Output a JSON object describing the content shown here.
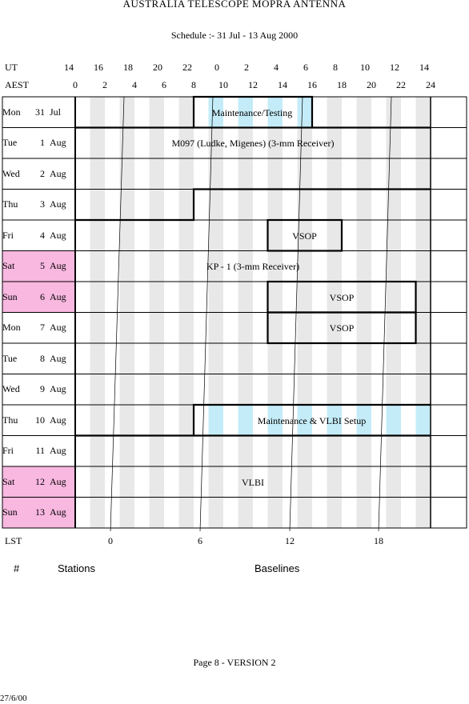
{
  "title": "AUSTRALIA TELESCOPE MOPRA ANTENNA",
  "subtitle": "Schedule :- 31 Jul - 13 Aug 2000",
  "ut_label": "UT",
  "aest_label": "AEST",
  "lst_label": "LST",
  "ut_ticks": [
    "14",
    "16",
    "18",
    "20",
    "22",
    "0",
    "2",
    "4",
    "6",
    "8",
    "10",
    "12",
    "14"
  ],
  "aest_ticks": [
    "0",
    "2",
    "4",
    "6",
    "8",
    "10",
    "12",
    "14",
    "16",
    "18",
    "20",
    "22",
    "24"
  ],
  "lst_ticks": [
    "0",
    "6",
    "12",
    "18"
  ],
  "days": [
    {
      "dow": "Mon",
      "num": "31",
      "mon": "Jul",
      "weekend": false
    },
    {
      "dow": "Tue",
      "num": "1",
      "mon": "Aug",
      "weekend": false
    },
    {
      "dow": "Wed",
      "num": "2",
      "mon": "Aug",
      "weekend": false
    },
    {
      "dow": "Thu",
      "num": "3",
      "mon": "Aug",
      "weekend": false
    },
    {
      "dow": "Fri",
      "num": "4",
      "mon": "Aug",
      "weekend": false
    },
    {
      "dow": "Sat",
      "num": "5",
      "mon": "Aug",
      "weekend": true
    },
    {
      "dow": "Sun",
      "num": "6",
      "mon": "Aug",
      "weekend": true
    },
    {
      "dow": "Mon",
      "num": "7",
      "mon": "Aug",
      "weekend": false
    },
    {
      "dow": "Tue",
      "num": "8",
      "mon": "Aug",
      "weekend": false
    },
    {
      "dow": "Wed",
      "num": "9",
      "mon": "Aug",
      "weekend": false
    },
    {
      "dow": "Thu",
      "num": "10",
      "mon": "Aug",
      "weekend": false
    },
    {
      "dow": "Fri",
      "num": "11",
      "mon": "Aug",
      "weekend": false
    },
    {
      "dow": "Sat",
      "num": "12",
      "mon": "Aug",
      "weekend": true
    },
    {
      "dow": "Sun",
      "num": "13",
      "mon": "Aug",
      "weekend": true
    }
  ],
  "blocks": {
    "maint1": "Maintenance/Testing",
    "m097": "M097 (Ludke, Migenes) (3-mm Receiver)",
    "vsop1": "VSOP",
    "kp1": "KP - 1 (3-mm Receiver)",
    "vsop2": "VSOP",
    "vsop3": "VSOP",
    "maint2": "Maintenance & VLBI Setup",
    "vlbi": "VLBI"
  },
  "table_headers": {
    "hash": "#",
    "stations": "Stations",
    "baselines": "Baselines"
  },
  "footer": {
    "page": "Page 8 - VERSION 2",
    "date": "27/6/00"
  },
  "colors": {
    "weekend": "#f8b8e0",
    "stripe": "#e8e8e8",
    "maint": "#c4ecf8"
  }
}
